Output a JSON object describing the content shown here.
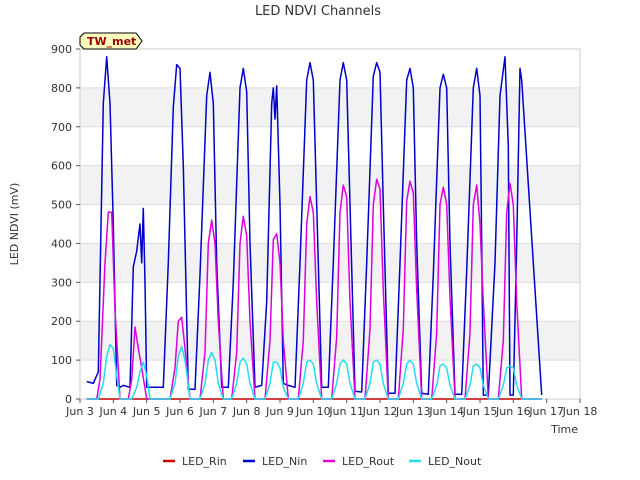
{
  "chart_data": {
    "type": "line",
    "title": "LED NDVI Channels",
    "xlabel": "Time",
    "ylabel": "LED NDVI (mV)",
    "ylim": [
      0,
      900
    ],
    "yticks": [
      0,
      100,
      200,
      300,
      400,
      500,
      600,
      700,
      800,
      900
    ],
    "xlim": [
      3,
      18
    ],
    "xticks": [
      3,
      4,
      5,
      6,
      7,
      8,
      9,
      10,
      11,
      12,
      13,
      14,
      15,
      16,
      17,
      18
    ],
    "xtick_labels": [
      "Jun 3",
      "Jun 4",
      "Jun 5",
      "Jun 6",
      "Jun 7",
      "Jun 8",
      "Jun 9",
      "Jun 10",
      "Jun 11",
      "Jun 12",
      "Jun 13",
      "Jun 14",
      "Jun 15",
      "Jun 16",
      "Jun 17",
      "Jun 18"
    ],
    "grid": "horizontal bands",
    "legend_placement": "bottom",
    "annotation": "TW_met",
    "series": [
      {
        "name": "LED_Rin",
        "color": "#cc0000",
        "x": [
          3.2,
          16.85
        ],
        "y": [
          0,
          0
        ]
      },
      {
        "name": "LED_Nin",
        "color": "#0000cc",
        "x": [
          3.2,
          3.4,
          3.55,
          3.7,
          3.8,
          3.9,
          4.0,
          4.1,
          4.2,
          4.3,
          4.5,
          4.6,
          4.7,
          4.8,
          4.85,
          4.9,
          4.95,
          5.0,
          5.1,
          5.2,
          5.5,
          5.65,
          5.8,
          5.9,
          6.0,
          6.1,
          6.25,
          6.45,
          6.6,
          6.8,
          6.9,
          7.0,
          7.1,
          7.25,
          7.45,
          7.6,
          7.8,
          7.9,
          8.0,
          8.1,
          8.25,
          8.45,
          8.6,
          8.75,
          8.8,
          8.85,
          8.9,
          9.0,
          9.1,
          9.25,
          9.45,
          9.6,
          9.8,
          9.9,
          10.0,
          10.1,
          10.25,
          10.45,
          10.6,
          10.8,
          10.9,
          11.0,
          11.1,
          11.25,
          11.45,
          11.6,
          11.8,
          11.9,
          12.0,
          12.1,
          12.25,
          12.45,
          12.6,
          12.8,
          12.9,
          13.0,
          13.1,
          13.25,
          13.45,
          13.6,
          13.8,
          13.9,
          14.0,
          14.1,
          14.25,
          14.45,
          14.6,
          14.8,
          14.9,
          15.0,
          15.05,
          15.1,
          15.2,
          15.25,
          15.45,
          15.6,
          15.75,
          15.85,
          15.9,
          16.0,
          16.1,
          16.2,
          16.25,
          16.85
        ],
        "y": [
          45,
          40,
          70,
          760,
          880,
          760,
          450,
          35,
          30,
          35,
          30,
          340,
          380,
          450,
          350,
          490,
          300,
          30,
          30,
          30,
          30,
          350,
          750,
          860,
          850,
          600,
          25,
          25,
          320,
          780,
          840,
          760,
          350,
          30,
          30,
          300,
          800,
          850,
          790,
          400,
          30,
          35,
          250,
          760,
          800,
          720,
          805,
          500,
          40,
          35,
          30,
          350,
          820,
          865,
          820,
          500,
          30,
          30,
          350,
          820,
          865,
          820,
          500,
          20,
          18,
          350,
          830,
          865,
          840,
          500,
          15,
          15,
          350,
          820,
          850,
          800,
          400,
          15,
          12,
          320,
          800,
          835,
          800,
          400,
          12,
          12,
          330,
          800,
          850,
          780,
          400,
          10,
          10,
          10,
          350,
          780,
          880,
          650,
          10,
          10,
          400,
          850,
          820,
          10
        ]
      },
      {
        "name": "LED_Rout",
        "color": "#dd00dd",
        "x": [
          3.2,
          3.5,
          3.6,
          3.75,
          3.85,
          3.95,
          4.05,
          4.2,
          4.45,
          4.55,
          4.65,
          4.75,
          4.85,
          5.0,
          5.7,
          5.85,
          5.95,
          6.05,
          6.15,
          6.3,
          6.6,
          6.75,
          6.85,
          6.95,
          7.05,
          7.15,
          7.3,
          7.55,
          7.7,
          7.8,
          7.9,
          8.0,
          8.1,
          8.25,
          8.55,
          8.7,
          8.8,
          8.9,
          9.0,
          9.1,
          9.25,
          9.55,
          9.7,
          9.8,
          9.9,
          10.0,
          10.1,
          10.25,
          10.55,
          10.7,
          10.8,
          10.9,
          11.0,
          11.1,
          11.25,
          11.55,
          11.7,
          11.8,
          11.9,
          12.0,
          12.1,
          12.25,
          12.55,
          12.7,
          12.8,
          12.9,
          13.0,
          13.1,
          13.25,
          13.55,
          13.7,
          13.8,
          13.9,
          14.0,
          14.1,
          14.25,
          14.55,
          14.7,
          14.8,
          14.9,
          15.0,
          15.1,
          15.25,
          15.55,
          15.7,
          15.8,
          15.9,
          16.0,
          16.1,
          16.25,
          16.85
        ],
        "y": [
          0,
          0,
          50,
          350,
          480,
          480,
          230,
          0,
          0,
          50,
          185,
          130,
          80,
          0,
          0,
          80,
          200,
          210,
          130,
          0,
          0,
          120,
          400,
          460,
          400,
          200,
          0,
          0,
          120,
          400,
          470,
          420,
          200,
          0,
          0,
          150,
          410,
          425,
          350,
          150,
          0,
          0,
          150,
          450,
          520,
          480,
          250,
          0,
          0,
          160,
          480,
          550,
          520,
          250,
          0,
          0,
          180,
          500,
          565,
          540,
          280,
          0,
          0,
          180,
          510,
          560,
          530,
          280,
          0,
          0,
          170,
          500,
          545,
          500,
          260,
          0,
          0,
          170,
          500,
          550,
          450,
          250,
          0,
          0,
          150,
          480,
          555,
          500,
          250,
          0,
          0
        ]
      },
      {
        "name": "LED_Nout",
        "color": "#22ddee",
        "x": [
          3.2,
          3.55,
          3.7,
          3.8,
          3.9,
          4.0,
          4.1,
          4.2,
          4.55,
          4.7,
          4.8,
          4.9,
          5.0,
          5.1,
          5.7,
          5.85,
          5.95,
          6.05,
          6.15,
          6.3,
          6.6,
          6.75,
          6.85,
          6.95,
          7.05,
          7.15,
          7.3,
          7.55,
          7.7,
          7.8,
          7.9,
          8.0,
          8.1,
          8.25,
          8.55,
          8.7,
          8.8,
          8.9,
          9.0,
          9.1,
          9.25,
          9.55,
          9.7,
          9.8,
          9.9,
          10.0,
          10.1,
          10.25,
          10.55,
          10.7,
          10.8,
          10.9,
          11.0,
          11.1,
          11.25,
          11.55,
          11.7,
          11.8,
          11.9,
          12.0,
          12.1,
          12.25,
          12.55,
          12.7,
          12.8,
          12.9,
          13.0,
          13.1,
          13.25,
          13.55,
          13.7,
          13.8,
          13.9,
          14.0,
          14.1,
          14.25,
          14.55,
          14.7,
          14.8,
          14.9,
          15.0,
          15.1,
          15.25,
          15.55,
          15.7,
          15.8,
          15.9,
          16.0,
          16.1,
          16.25,
          16.85
        ],
        "y": [
          0,
          0,
          40,
          110,
          140,
          130,
          60,
          0,
          0,
          30,
          70,
          95,
          60,
          0,
          0,
          40,
          110,
          135,
          100,
          0,
          0,
          40,
          100,
          120,
          100,
          40,
          0,
          0,
          40,
          95,
          105,
          90,
          40,
          0,
          0,
          40,
          95,
          95,
          80,
          30,
          0,
          0,
          40,
          95,
          100,
          90,
          40,
          0,
          0,
          40,
          90,
          100,
          90,
          40,
          0,
          0,
          40,
          95,
          100,
          90,
          40,
          0,
          0,
          40,
          90,
          100,
          90,
          40,
          0,
          0,
          35,
          85,
          90,
          80,
          35,
          0,
          0,
          35,
          85,
          90,
          80,
          35,
          0,
          0,
          35,
          80,
          85,
          80,
          35,
          0,
          0
        ]
      }
    ]
  }
}
